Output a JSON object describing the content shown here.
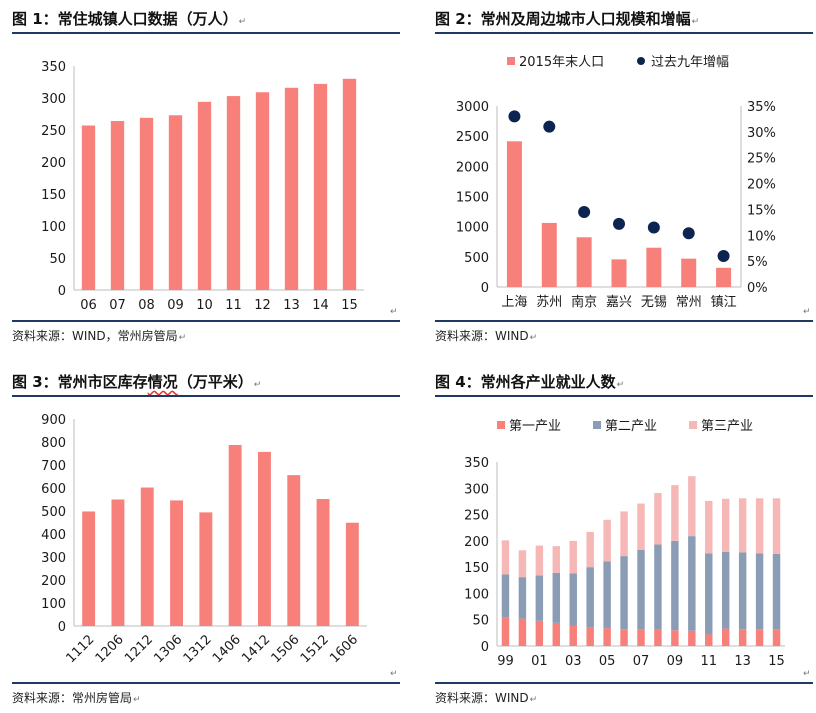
{
  "colors": {
    "bar": "#f7807a",
    "dot": "#0d2350",
    "primary": "#f7807a",
    "secondary": "#8a9db4",
    "tertiary": "#f6b8b7",
    "rule": "#1f3864"
  },
  "return_mark": "↵",
  "panels": [
    {
      "title": "图 1：常住城镇人口数据（万人）",
      "source": "资料来源：WIND，常州房管局"
    },
    {
      "title": "图 2：常州及周边城市人口规模和增幅",
      "source": "资料来源：WIND"
    },
    {
      "title_prefix": "图 3：常州市区库存",
      "title_squiggle": "情况",
      "title_suffix": "（万平米）",
      "source": "资料来源：常州房管局"
    },
    {
      "title": "图 4：常州各产业就业人数",
      "source": "资料来源：WIND"
    }
  ],
  "chart_data": [
    {
      "type": "bar",
      "categories": [
        "06",
        "07",
        "08",
        "09",
        "10",
        "11",
        "12",
        "13",
        "14",
        "15"
      ],
      "values": [
        257,
        264,
        269,
        273,
        294,
        303,
        309,
        316,
        322,
        330
      ],
      "ylim": [
        0,
        350
      ],
      "yticks": [
        "0",
        "50",
        "100",
        "150",
        "200",
        "250",
        "300",
        "350"
      ]
    },
    {
      "type": "bar",
      "categories": [
        "上海",
        "苏州",
        "南京",
        "嘉兴",
        "无锡",
        "常州",
        "镇江"
      ],
      "legend": [
        "2015年末人口",
        "过去九年增幅"
      ],
      "series": [
        {
          "name": "2015年末人口",
          "values": [
            2415,
            1062,
            824,
            458,
            651,
            470,
            318
          ]
        },
        {
          "name": "过去九年增幅",
          "values": [
            0.33,
            0.31,
            0.145,
            0.122,
            0.115,
            0.104,
            0.06
          ]
        }
      ],
      "ylim": [
        0,
        3000
      ],
      "y2lim": [
        0,
        0.35
      ],
      "yticks": [
        "0",
        "500",
        "1000",
        "1500",
        "2000",
        "2500",
        "3000"
      ],
      "y2ticks": [
        "0%",
        "5%",
        "10%",
        "15%",
        "20%",
        "25%",
        "30%",
        "35%"
      ]
    },
    {
      "type": "bar",
      "categories": [
        "1112",
        "1206",
        "1212",
        "1306",
        "1312",
        "1406",
        "1412",
        "1506",
        "1512",
        "1606"
      ],
      "values": [
        498,
        550,
        602,
        546,
        494,
        787,
        757,
        656,
        552,
        449
      ],
      "ylim": [
        0,
        900
      ],
      "yticks": [
        "0",
        "100",
        "200",
        "300",
        "400",
        "500",
        "600",
        "700",
        "800",
        "900"
      ]
    },
    {
      "type": "bar",
      "stacked": true,
      "x": [
        "99",
        "00",
        "01",
        "02",
        "03",
        "04",
        "05",
        "06",
        "07",
        "08",
        "09",
        "10",
        "11",
        "12",
        "13",
        "14",
        "15"
      ],
      "xticks": [
        "99",
        "01",
        "03",
        "05",
        "07",
        "09",
        "11",
        "13",
        "15"
      ],
      "legend": [
        "第一产业",
        "第二产业",
        "第三产业"
      ],
      "series": [
        {
          "name": "第一产业",
          "values": [
            55,
            52,
            48,
            44,
            39,
            36,
            34,
            32,
            31,
            31,
            30,
            29,
            22,
            33,
            32,
            32,
            32
          ]
        },
        {
          "name": "第二产业",
          "values": [
            81,
            79,
            86,
            95,
            99,
            114,
            127,
            139,
            152,
            162,
            170,
            180,
            154,
            146,
            146,
            144,
            143
          ]
        },
        {
          "name": "第三产业",
          "values": [
            65,
            51,
            57,
            51,
            62,
            67,
            79,
            85,
            88,
            98,
            106,
            114,
            100,
            101,
            103,
            105,
            106
          ]
        }
      ],
      "ylim": [
        0,
        350
      ],
      "yticks": [
        "0",
        "50",
        "100",
        "150",
        "200",
        "250",
        "300",
        "350"
      ]
    }
  ]
}
